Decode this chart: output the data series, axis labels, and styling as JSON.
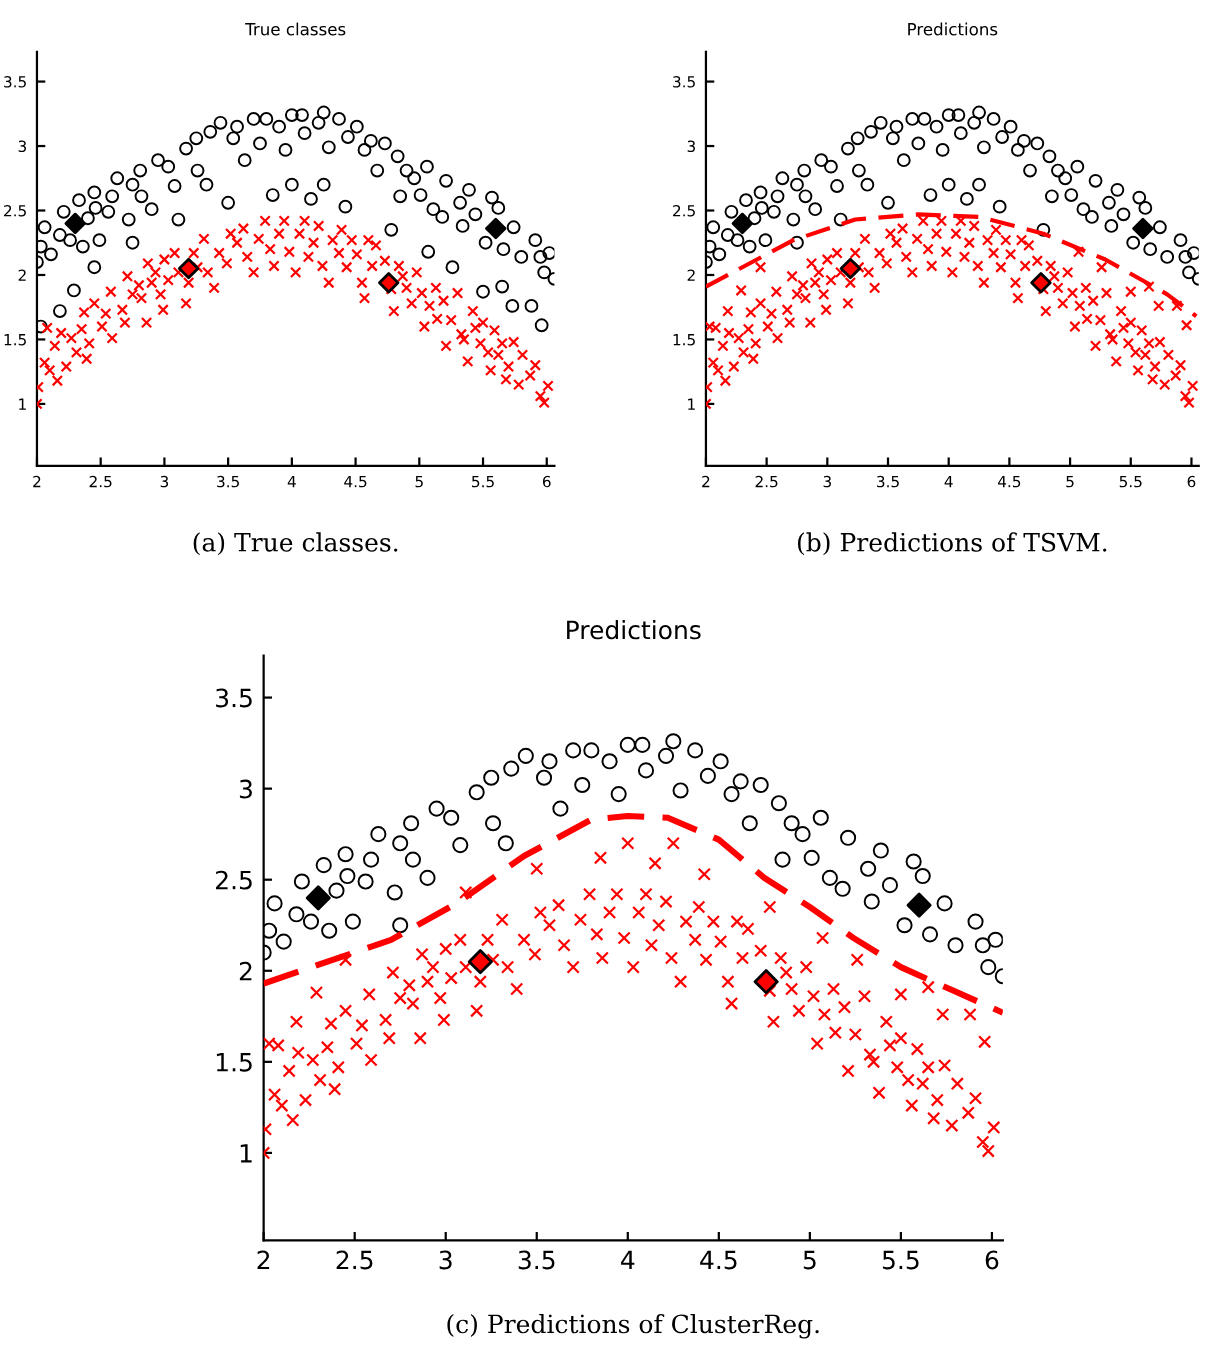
{
  "chart_data": [
    {
      "type": "scatter",
      "title": "True classes",
      "annotations": [
        "(a) True classes."
      ],
      "xlim": [
        2,
        6.06
      ],
      "ylim": [
        0.52,
        3.73
      ],
      "xticks": [
        2,
        2.5,
        3,
        3.5,
        4,
        4.5,
        5,
        5.5,
        6
      ],
      "yticks": [
        1,
        1.5,
        2,
        2.5,
        3,
        3.5
      ],
      "series": [
        {
          "type": "scatter",
          "marker": "circle",
          "color": "#000000",
          "x": [
            2.0,
            2.03,
            2.06,
            2.03,
            2.11,
            2.18,
            2.21,
            2.18,
            2.29,
            2.26,
            2.33,
            2.36,
            2.4,
            2.45,
            2.46,
            2.45,
            2.49,
            2.56,
            2.59,
            2.63,
            2.72,
            2.75,
            2.75,
            2.81,
            2.82,
            2.9,
            2.95,
            3.03,
            3.08,
            3.11,
            3.17,
            3.25,
            3.26,
            3.33,
            3.36,
            3.44,
            3.5,
            3.54,
            3.57,
            3.63,
            3.7,
            3.75,
            3.8,
            3.85,
            3.9,
            3.95,
            4.0,
            4.0,
            4.08,
            4.1,
            4.15,
            4.21,
            4.25,
            4.25,
            4.29,
            4.37,
            4.42,
            4.44,
            4.51,
            4.57,
            4.62,
            4.67,
            4.73,
            4.78,
            4.83,
            4.85,
            4.9,
            4.96,
            5.01,
            5.06,
            5.07,
            5.11,
            5.18,
            5.21,
            5.26,
            5.32,
            5.34,
            5.39,
            5.44,
            5.5,
            5.52,
            5.57,
            5.62,
            5.65,
            5.66,
            5.73,
            5.74,
            5.8,
            5.88,
            5.91,
            5.95,
            5.96,
            5.98,
            6.02,
            6.06
          ],
          "values": [
            2.1,
            2.22,
            2.37,
            1.6,
            2.16,
            2.31,
            2.49,
            1.72,
            1.88,
            2.27,
            2.58,
            2.22,
            2.44,
            2.64,
            2.52,
            2.06,
            2.27,
            2.49,
            2.61,
            2.75,
            2.43,
            2.25,
            2.7,
            2.81,
            2.61,
            2.51,
            2.89,
            2.84,
            2.69,
            2.43,
            2.98,
            3.06,
            2.81,
            2.7,
            3.11,
            3.18,
            2.56,
            3.06,
            3.15,
            2.89,
            3.21,
            3.02,
            3.21,
            2.62,
            3.15,
            2.97,
            3.24,
            2.7,
            3.24,
            3.1,
            2.59,
            3.18,
            3.26,
            2.7,
            2.99,
            3.21,
            2.53,
            3.07,
            3.15,
            2.97,
            3.04,
            2.81,
            3.02,
            2.35,
            2.92,
            2.61,
            2.81,
            2.75,
            2.62,
            2.84,
            2.18,
            2.51,
            2.45,
            2.73,
            2.06,
            2.56,
            2.38,
            2.66,
            2.47,
            1.87,
            2.25,
            2.6,
            2.52,
            1.91,
            2.2,
            1.76,
            2.37,
            2.14,
            1.76,
            2.27,
            2.14,
            1.61,
            2.02,
            2.17,
            1.97
          ]
        },
        {
          "type": "scatter",
          "marker": "cross",
          "color": "#ff0000",
          "x": [
            2.0,
            2.01,
            2.06,
            2.08,
            2.1,
            2.14,
            2.16,
            2.19,
            2.23,
            2.27,
            2.31,
            2.35,
            2.37,
            2.39,
            2.41,
            2.45,
            2.51,
            2.54,
            2.58,
            2.59,
            2.67,
            2.69,
            2.71,
            2.75,
            2.8,
            2.82,
            2.86,
            2.87,
            2.9,
            2.93,
            2.97,
            2.99,
            3.0,
            3.03,
            3.08,
            3.11,
            3.17,
            3.19,
            3.23,
            3.26,
            3.31,
            3.34,
            3.39,
            3.43,
            3.49,
            3.52,
            3.57,
            3.62,
            3.65,
            3.7,
            3.74,
            3.79,
            3.83,
            3.86,
            3.9,
            3.94,
            3.98,
            4.03,
            4.06,
            4.1,
            4.13,
            4.17,
            4.21,
            4.24,
            4.29,
            4.32,
            4.37,
            4.39,
            4.43,
            4.47,
            4.51,
            4.55,
            4.57,
            4.6,
            4.63,
            4.66,
            4.73,
            4.78,
            4.8,
            4.84,
            4.87,
            4.9,
            4.94,
            4.98,
            5.02,
            5.04,
            5.08,
            5.13,
            5.14,
            5.19,
            5.21,
            5.25,
            5.3,
            5.33,
            5.35,
            5.38,
            5.42,
            5.44,
            5.48,
            5.5,
            5.54,
            5.56,
            5.59,
            5.62,
            5.65,
            5.68,
            5.7,
            5.74,
            5.78,
            5.81,
            5.87,
            5.91,
            5.95,
            5.98,
            6.01
          ],
          "values": [
            1.0,
            1.13,
            1.32,
            1.59,
            1.26,
            1.45,
            1.18,
            1.55,
            1.29,
            1.51,
            1.4,
            1.58,
            1.71,
            1.35,
            1.47,
            1.78,
            1.6,
            1.7,
            1.87,
            1.51,
            1.73,
            1.63,
            1.99,
            1.85,
            1.92,
            1.82,
            1.63,
            2.09,
            1.94,
            2.02,
            1.85,
            1.73,
            2.12,
            1.96,
            2.17,
            2.02,
            1.78,
            1.94,
            2.17,
            2.06,
            2.28,
            2.02,
            1.9,
            2.17,
            2.09,
            2.32,
            2.25,
            2.36,
            2.14,
            2.02,
            2.28,
            2.42,
            2.2,
            2.07,
            2.32,
            2.42,
            2.18,
            2.02,
            2.32,
            2.42,
            2.14,
            2.25,
            2.38,
            2.07,
            1.94,
            2.27,
            2.17,
            2.35,
            2.06,
            2.27,
            2.16,
            1.94,
            1.82,
            2.27,
            2.07,
            2.23,
            2.11,
            1.89,
            1.72,
            2.07,
            1.99,
            1.9,
            1.78,
            2.02,
            1.86,
            1.6,
            1.76,
            1.9,
            1.66,
            1.8,
            1.45,
            1.65,
            1.86,
            1.54,
            1.5,
            1.33,
            1.72,
            1.59,
            1.47,
            1.63,
            1.4,
            1.26,
            1.57,
            1.38,
            1.47,
            1.19,
            1.29,
            1.48,
            1.15,
            1.38,
            1.22,
            1.3,
            1.06,
            1.01,
            1.14
          ]
        },
        {
          "type": "scatter",
          "marker": "diamond",
          "color": "#000000",
          "x": [
            2.3,
            5.6
          ],
          "values": [
            2.4,
            2.36
          ]
        },
        {
          "type": "scatter",
          "marker": "diamond",
          "color": "#ff0000",
          "x": [
            3.19,
            4.76
          ],
          "values": [
            2.05,
            1.94
          ]
        }
      ]
    },
    {
      "type": "scatter",
      "title": "Predictions",
      "annotations": [
        "(b) Predictions of TSVM."
      ],
      "xlim": [
        2,
        6.06
      ],
      "ylim": [
        0.52,
        3.73
      ],
      "xticks": [
        2,
        2.5,
        3,
        3.5,
        4,
        4.5,
        5,
        5.5,
        6
      ],
      "yticks": [
        1,
        1.5,
        2,
        2.5,
        3,
        3.5
      ],
      "series": [
        {
          "type": "scatter",
          "marker": "circle",
          "color": "#000000",
          "x": [
            2.0,
            2.03,
            2.06,
            2.11,
            2.18,
            2.21,
            2.26,
            2.33,
            2.36,
            2.4,
            2.45,
            2.46,
            2.49,
            2.56,
            2.59,
            2.63,
            2.72,
            2.75,
            2.75,
            2.81,
            2.82,
            2.9,
            2.95,
            3.03,
            3.08,
            3.11,
            3.17,
            3.25,
            3.26,
            3.33,
            3.36,
            3.44,
            3.5,
            3.54,
            3.57,
            3.63,
            3.7,
            3.75,
            3.8,
            3.85,
            3.9,
            3.95,
            4.0,
            4.0,
            4.08,
            4.1,
            4.15,
            4.21,
            4.25,
            4.25,
            4.29,
            4.37,
            4.42,
            4.44,
            4.51,
            4.57,
            4.62,
            4.67,
            4.73,
            4.78,
            4.83,
            4.85,
            4.9,
            4.96,
            5.01,
            5.06,
            5.11,
            5.18,
            5.21,
            5.32,
            5.34,
            5.39,
            5.44,
            5.52,
            5.57,
            5.62,
            5.66,
            5.74,
            5.8,
            5.91,
            5.95,
            5.98,
            6.02,
            6.06
          ],
          "values": [
            2.1,
            2.22,
            2.37,
            2.16,
            2.31,
            2.49,
            2.27,
            2.58,
            2.22,
            2.44,
            2.64,
            2.52,
            2.27,
            2.49,
            2.61,
            2.75,
            2.43,
            2.25,
            2.7,
            2.81,
            2.61,
            2.51,
            2.89,
            2.84,
            2.69,
            2.43,
            2.98,
            3.06,
            2.81,
            2.7,
            3.11,
            3.18,
            2.56,
            3.06,
            3.15,
            2.89,
            3.21,
            3.02,
            3.21,
            2.62,
            3.15,
            2.97,
            3.24,
            2.7,
            3.24,
            3.1,
            2.59,
            3.18,
            3.26,
            2.7,
            2.99,
            3.21,
            2.53,
            3.07,
            3.15,
            2.97,
            3.04,
            2.81,
            3.02,
            2.35,
            2.92,
            2.61,
            2.81,
            2.75,
            2.62,
            2.84,
            2.51,
            2.45,
            2.73,
            2.56,
            2.38,
            2.66,
            2.47,
            2.25,
            2.6,
            2.52,
            2.2,
            2.37,
            2.14,
            2.27,
            2.14,
            2.02,
            2.17,
            1.97
          ]
        },
        {
          "type": "scatter",
          "marker": "cross",
          "color": "#ff0000",
          "x": [
            2.03,
            2.18,
            2.29,
            2.45,
            5.07,
            5.26,
            5.5,
            5.65,
            5.73,
            5.88,
            5.96,
            2.0,
            2.01,
            2.06,
            2.08,
            2.1,
            2.14,
            2.16,
            2.19,
            2.23,
            2.27,
            2.31,
            2.35,
            2.37,
            2.39,
            2.41,
            2.45,
            2.51,
            2.54,
            2.58,
            2.59,
            2.67,
            2.69,
            2.71,
            2.75,
            2.8,
            2.82,
            2.86,
            2.87,
            2.9,
            2.93,
            2.97,
            2.99,
            3.0,
            3.03,
            3.08,
            3.11,
            3.17,
            3.19,
            3.23,
            3.26,
            3.31,
            3.34,
            3.39,
            3.43,
            3.49,
            3.52,
            3.57,
            3.62,
            3.65,
            3.7,
            3.74,
            3.79,
            3.83,
            3.86,
            3.9,
            3.94,
            3.98,
            4.03,
            4.06,
            4.1,
            4.13,
            4.17,
            4.21,
            4.24,
            4.29,
            4.32,
            4.37,
            4.39,
            4.43,
            4.47,
            4.51,
            4.55,
            4.57,
            4.6,
            4.63,
            4.66,
            4.73,
            4.78,
            4.8,
            4.84,
            4.87,
            4.9,
            4.94,
            4.98,
            5.02,
            5.04,
            5.08,
            5.13,
            5.14,
            5.19,
            5.21,
            5.25,
            5.3,
            5.33,
            5.35,
            5.38,
            5.42,
            5.44,
            5.48,
            5.5,
            5.54,
            5.56,
            5.59,
            5.62,
            5.65,
            5.68,
            5.7,
            5.74,
            5.78,
            5.81,
            5.87,
            5.91,
            5.95,
            5.98,
            6.01
          ],
          "values": [
            1.6,
            1.72,
            1.88,
            2.06,
            2.18,
            2.06,
            1.87,
            1.91,
            1.76,
            1.76,
            1.61,
            1.0,
            1.13,
            1.32,
            1.59,
            1.26,
            1.45,
            1.18,
            1.55,
            1.29,
            1.51,
            1.4,
            1.58,
            1.71,
            1.35,
            1.47,
            1.78,
            1.6,
            1.7,
            1.87,
            1.51,
            1.73,
            1.63,
            1.99,
            1.85,
            1.92,
            1.82,
            1.63,
            2.09,
            1.94,
            2.02,
            1.85,
            1.73,
            2.12,
            1.96,
            2.17,
            2.02,
            1.78,
            1.94,
            2.17,
            2.06,
            2.28,
            2.02,
            1.9,
            2.17,
            2.09,
            2.32,
            2.25,
            2.36,
            2.14,
            2.02,
            2.28,
            2.42,
            2.2,
            2.07,
            2.32,
            2.42,
            2.18,
            2.02,
            2.32,
            2.42,
            2.14,
            2.25,
            2.38,
            2.07,
            1.94,
            2.27,
            2.17,
            2.35,
            2.06,
            2.27,
            2.16,
            1.94,
            1.82,
            2.27,
            2.07,
            2.23,
            2.11,
            1.89,
            1.72,
            2.07,
            1.99,
            1.9,
            1.78,
            2.02,
            1.86,
            1.6,
            1.76,
            1.9,
            1.66,
            1.8,
            1.45,
            1.65,
            1.86,
            1.54,
            1.5,
            1.33,
            1.72,
            1.59,
            1.47,
            1.63,
            1.4,
            1.26,
            1.57,
            1.38,
            1.47,
            1.19,
            1.29,
            1.48,
            1.15,
            1.38,
            1.22,
            1.3,
            1.06,
            1.01,
            1.14
          ]
        },
        {
          "type": "scatter",
          "marker": "diamond",
          "color": "#000000",
          "x": [
            2.3,
            5.6
          ],
          "values": [
            2.4,
            2.36
          ]
        },
        {
          "type": "scatter",
          "marker": "diamond",
          "color": "#ff0000",
          "x": [
            3.19,
            4.76
          ],
          "values": [
            2.05,
            1.94
          ]
        },
        {
          "type": "line",
          "line_style": "dashed",
          "color": "#ff0000",
          "x": [
            2.0,
            2.72,
            3.23,
            3.75,
            4.26,
            4.78,
            5.29,
            5.8,
            6.04
          ],
          "values": [
            1.91,
            2.27,
            2.43,
            2.47,
            2.45,
            2.32,
            2.12,
            1.85,
            1.68
          ]
        }
      ]
    },
    {
      "type": "scatter",
      "title": "Predictions",
      "annotations": [
        "(c) Predictions of ClusterReg."
      ],
      "xlim": [
        2,
        6.06
      ],
      "ylim": [
        0.52,
        3.73
      ],
      "xticks": [
        2,
        2.5,
        3,
        3.5,
        4,
        4.5,
        5,
        5.5,
        6
      ],
      "yticks": [
        1,
        1.5,
        2,
        2.5,
        3,
        3.5
      ],
      "series": [
        {
          "type": "scatter",
          "marker": "circle",
          "color": "#000000",
          "x": [
            2.0,
            2.03,
            2.06,
            2.11,
            2.18,
            2.21,
            2.26,
            2.33,
            2.36,
            2.4,
            2.45,
            2.46,
            2.49,
            2.56,
            2.59,
            2.63,
            2.72,
            2.75,
            2.75,
            2.81,
            2.82,
            2.9,
            2.95,
            3.03,
            3.08,
            3.17,
            3.25,
            3.26,
            3.33,
            3.36,
            3.44,
            3.54,
            3.57,
            3.63,
            3.7,
            3.75,
            3.8,
            3.9,
            3.95,
            4.0,
            4.08,
            4.1,
            4.21,
            4.25,
            4.29,
            4.37,
            4.44,
            4.51,
            4.57,
            4.62,
            4.67,
            4.73,
            4.83,
            4.85,
            4.9,
            4.96,
            5.01,
            5.06,
            5.11,
            5.18,
            5.21,
            5.32,
            5.34,
            5.39,
            5.44,
            5.52,
            5.57,
            5.62,
            5.66,
            5.74,
            5.8,
            5.91,
            5.95,
            5.98,
            6.02,
            6.06
          ],
          "values": [
            2.1,
            2.22,
            2.37,
            2.16,
            2.31,
            2.49,
            2.27,
            2.58,
            2.22,
            2.44,
            2.64,
            2.52,
            2.27,
            2.49,
            2.61,
            2.75,
            2.43,
            2.25,
            2.7,
            2.81,
            2.61,
            2.51,
            2.89,
            2.84,
            2.69,
            2.98,
            3.06,
            2.81,
            2.7,
            3.11,
            3.18,
            3.06,
            3.15,
            2.89,
            3.21,
            3.02,
            3.21,
            3.15,
            2.97,
            3.24,
            3.24,
            3.1,
            3.18,
            3.26,
            2.99,
            3.21,
            3.07,
            3.15,
            2.97,
            3.04,
            2.81,
            3.02,
            2.92,
            2.61,
            2.81,
            2.75,
            2.62,
            2.84,
            2.51,
            2.45,
            2.73,
            2.56,
            2.38,
            2.66,
            2.47,
            2.25,
            2.6,
            2.52,
            2.2,
            2.37,
            2.14,
            2.27,
            2.14,
            2.02,
            2.17,
            1.97
          ]
        },
        {
          "type": "scatter",
          "marker": "cross",
          "color": "#ff0000",
          "x": [
            2.03,
            2.18,
            2.29,
            2.45,
            3.11,
            3.5,
            3.85,
            4.0,
            4.15,
            4.25,
            4.42,
            4.78,
            5.07,
            5.26,
            5.5,
            5.65,
            5.73,
            5.88,
            5.96,
            2.0,
            2.01,
            2.06,
            2.08,
            2.1,
            2.14,
            2.16,
            2.19,
            2.23,
            2.27,
            2.31,
            2.35,
            2.37,
            2.39,
            2.41,
            2.45,
            2.51,
            2.54,
            2.58,
            2.59,
            2.67,
            2.69,
            2.71,
            2.75,
            2.8,
            2.82,
            2.86,
            2.87,
            2.9,
            2.93,
            2.97,
            2.99,
            3.0,
            3.03,
            3.08,
            3.11,
            3.17,
            3.19,
            3.23,
            3.26,
            3.31,
            3.34,
            3.39,
            3.43,
            3.49,
            3.52,
            3.57,
            3.62,
            3.65,
            3.7,
            3.74,
            3.79,
            3.83,
            3.86,
            3.9,
            3.94,
            3.98,
            4.03,
            4.06,
            4.1,
            4.13,
            4.17,
            4.21,
            4.24,
            4.29,
            4.32,
            4.37,
            4.39,
            4.43,
            4.47,
            4.51,
            4.55,
            4.57,
            4.6,
            4.63,
            4.66,
            4.73,
            4.78,
            4.8,
            4.84,
            4.87,
            4.9,
            4.94,
            4.98,
            5.02,
            5.04,
            5.08,
            5.13,
            5.14,
            5.19,
            5.21,
            5.25,
            5.3,
            5.33,
            5.35,
            5.38,
            5.42,
            5.44,
            5.48,
            5.5,
            5.54,
            5.56,
            5.59,
            5.62,
            5.65,
            5.68,
            5.7,
            5.74,
            5.78,
            5.81,
            5.87,
            5.91,
            5.95,
            5.98,
            6.01
          ],
          "values": [
            1.6,
            1.72,
            1.88,
            2.06,
            2.43,
            2.56,
            2.62,
            2.7,
            2.59,
            2.7,
            2.53,
            2.35,
            2.18,
            2.06,
            1.87,
            1.91,
            1.76,
            1.76,
            1.61,
            1.0,
            1.13,
            1.32,
            1.59,
            1.26,
            1.45,
            1.18,
            1.55,
            1.29,
            1.51,
            1.4,
            1.58,
            1.71,
            1.35,
            1.47,
            1.78,
            1.6,
            1.7,
            1.87,
            1.51,
            1.73,
            1.63,
            1.99,
            1.85,
            1.92,
            1.82,
            1.63,
            2.09,
            1.94,
            2.02,
            1.85,
            1.73,
            2.12,
            1.96,
            2.17,
            2.02,
            1.78,
            1.94,
            2.17,
            2.06,
            2.28,
            2.02,
            1.9,
            2.17,
            2.09,
            2.32,
            2.25,
            2.36,
            2.14,
            2.02,
            2.28,
            2.42,
            2.2,
            2.07,
            2.32,
            2.42,
            2.18,
            2.02,
            2.32,
            2.42,
            2.14,
            2.25,
            2.38,
            2.07,
            1.94,
            2.27,
            2.17,
            2.35,
            2.06,
            2.27,
            2.16,
            1.94,
            1.82,
            2.27,
            2.07,
            2.23,
            2.11,
            1.89,
            1.72,
            2.07,
            1.99,
            1.9,
            1.78,
            2.02,
            1.86,
            1.6,
            1.76,
            1.9,
            1.66,
            1.8,
            1.45,
            1.65,
            1.86,
            1.54,
            1.5,
            1.33,
            1.72,
            1.59,
            1.47,
            1.63,
            1.4,
            1.26,
            1.57,
            1.38,
            1.47,
            1.19,
            1.29,
            1.48,
            1.15,
            1.38,
            1.22,
            1.3,
            1.06,
            1.01,
            1.14
          ]
        },
        {
          "type": "scatter",
          "marker": "diamond",
          "color": "#000000",
          "x": [
            2.3,
            5.6
          ],
          "values": [
            2.4,
            2.36
          ]
        },
        {
          "type": "scatter",
          "marker": "diamond",
          "color": "#ff0000",
          "x": [
            3.19,
            4.76
          ],
          "values": [
            2.05,
            1.94
          ]
        },
        {
          "type": "line",
          "line_style": "dashed",
          "color": "#ff0000",
          "x": [
            2.0,
            2.7,
            3.06,
            3.43,
            3.8,
            4.0,
            4.22,
            4.5,
            4.75,
            5.0,
            5.24,
            5.5,
            5.79,
            6.06
          ],
          "values": [
            1.93,
            2.17,
            2.37,
            2.63,
            2.83,
            2.85,
            2.84,
            2.72,
            2.51,
            2.35,
            2.18,
            2.02,
            1.89,
            1.77
          ]
        }
      ]
    }
  ]
}
